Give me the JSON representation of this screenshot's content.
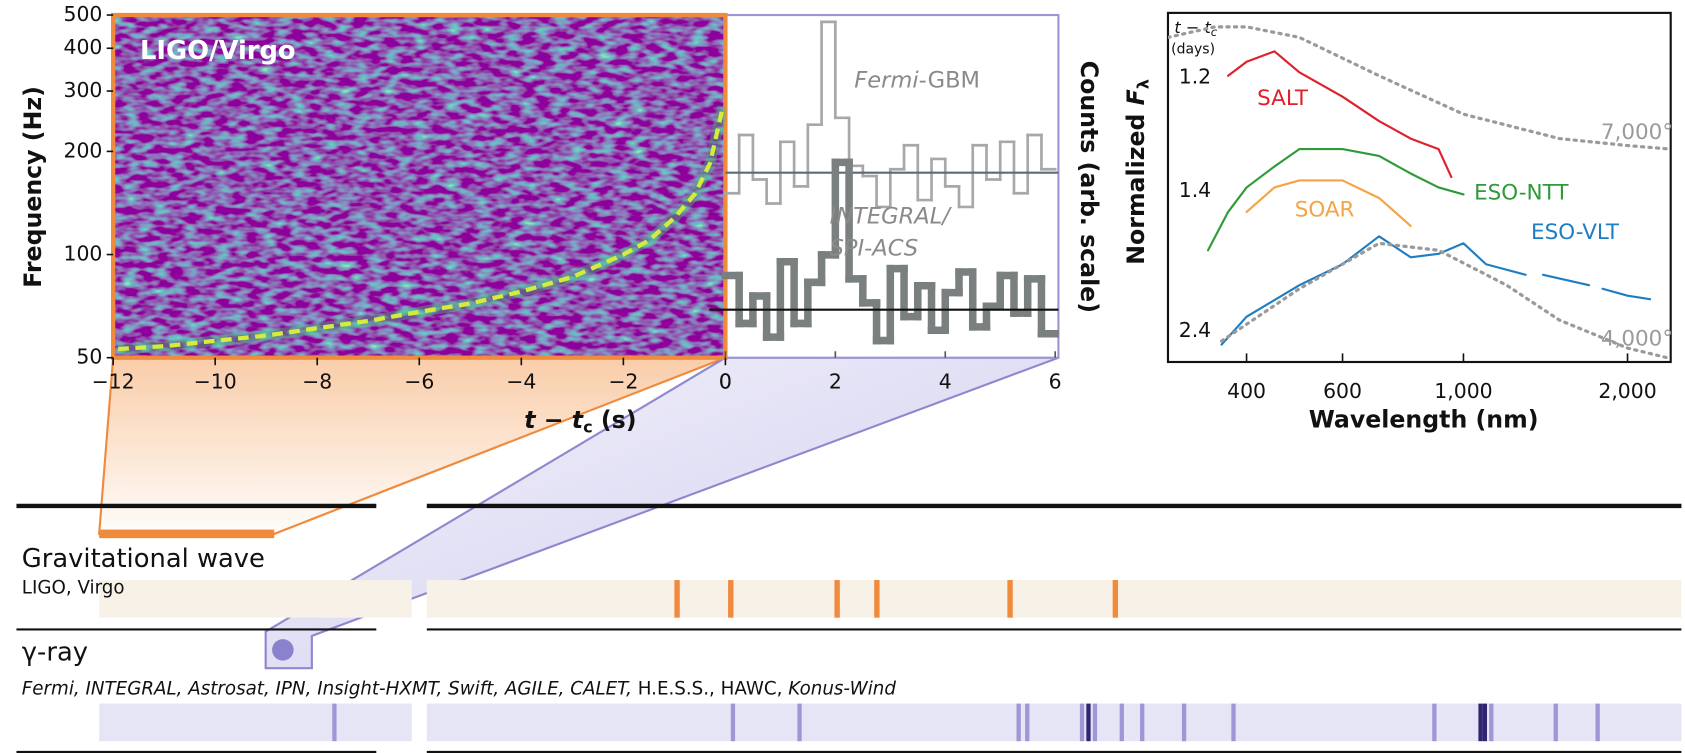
{
  "chart_data": [
    {
      "type": "spectrogram",
      "title": "LIGO/Virgo",
      "y_label": "Frequency (Hz)",
      "x_label": [
        "t",
        " − ",
        "t",
        "c",
        " (s)"
      ],
      "xlim": [
        -12,
        0
      ],
      "xticks": [
        {
          "value": -12,
          "label": "−12"
        },
        {
          "value": -10,
          "label": "−10"
        },
        {
          "value": -8,
          "label": "−8"
        },
        {
          "value": -6,
          "label": "−6"
        },
        {
          "value": -4,
          "label": "−4"
        },
        {
          "value": -2,
          "label": "−2"
        },
        0
      ],
      "ylim": [
        50,
        500
      ],
      "yticks": [
        50,
        100,
        200,
        300,
        400,
        500
      ],
      "log_y": true,
      "color": "#d4ec3c",
      "x": [
        -11.9,
        -11,
        -10,
        -9,
        -8,
        -7,
        -6,
        -5,
        -4,
        -3,
        -2,
        -1.5,
        -1,
        -0.6,
        -0.3,
        -0.05
      ],
      "values": [
        53,
        54,
        56,
        58,
        61,
        64,
        68,
        72,
        78,
        86,
        100,
        110,
        128,
        150,
        185,
        270
      ]
    },
    {
      "type": "histogram",
      "y_label": "Counts (arb. scale)",
      "xlim": [
        0,
        6
      ],
      "xticks": [
        0,
        2,
        4,
        6
      ],
      "ylim": [
        0,
        10
      ],
      "bins": [
        0,
        0.25,
        0.5,
        0.75,
        1,
        1.25,
        1.5,
        1.75,
        2,
        2.25,
        2.5,
        2.75,
        3,
        3.25,
        3.5,
        3.75,
        4,
        4.25,
        4.5,
        4.75,
        5,
        5.25,
        5.5,
        5.75,
        6
      ],
      "series": [
        {
          "label": [
            "Fermi",
            "-GBM"
          ],
          "color": "#a8a8a8",
          "baseline": 5.4,
          "baseline_color": "#5a6b7c",
          "values": [
            4.8,
            6.5,
            5.2,
            4.5,
            6.3,
            5.0,
            6.8,
            9.8,
            7.0,
            5.6,
            5.3,
            4.4,
            5.5,
            6.2,
            4.6,
            5.8,
            5.0,
            4.4,
            6.2,
            5.2,
            6.3,
            4.8,
            6.5,
            5.5
          ]
        },
        {
          "label": [
            "INTEGRAL/",
            "SPI-ACS"
          ],
          "color": "#7a7f7f",
          "baseline": 1.4,
          "baseline_color": "#111111",
          "values": [
            2.4,
            1.0,
            1.8,
            0.6,
            2.8,
            1.0,
            2.2,
            3.0,
            5.7,
            2.3,
            1.6,
            0.5,
            2.6,
            1.2,
            2.1,
            0.8,
            1.9,
            2.5,
            0.9,
            1.5,
            2.4,
            1.3,
            2.3,
            0.7
          ]
        }
      ]
    },
    {
      "type": "line",
      "y_label": [
        "Normalized ",
        "F",
        "λ"
      ],
      "x_label": "Wavelength (nm)",
      "epoch_header": [
        "t − t",
        "c",
        "(days)"
      ],
      "xlim": [
        287,
        2400
      ],
      "log_x": true,
      "xticks": [
        400,
        600,
        {
          "value": 1000,
          "label": "1,000"
        },
        {
          "value": 2000,
          "label": "2,000"
        }
      ],
      "ylim": [
        0,
        10
      ],
      "series": [
        {
          "name": "SALT",
          "color": "#e0202a",
          "epoch": 1.2,
          "x": [
            370,
            400,
            450,
            500,
            600,
            700,
            800,
            900,
            950
          ],
          "values": [
            8.2,
            8.6,
            8.9,
            8.3,
            7.6,
            6.9,
            6.4,
            6.1,
            5.3
          ]
        },
        {
          "name": "ESO-NTT",
          "color": "#2e9a3a",
          "epoch": 1.4,
          "x": [
            340,
            370,
            400,
            450,
            500,
            600,
            700,
            800,
            900,
            1000
          ],
          "values": [
            3.2,
            4.3,
            5.0,
            5.6,
            6.1,
            6.1,
            5.9,
            5.4,
            5.0,
            4.8
          ]
        },
        {
          "name": "SOAR",
          "color": "#f4a443",
          "x": [
            400,
            450,
            500,
            600,
            700,
            800
          ],
          "values": [
            4.3,
            5.0,
            5.2,
            5.2,
            4.7,
            3.9
          ]
        },
        {
          "name": "ESO-VLT",
          "color": "#1f7ec2",
          "epoch": 2.4,
          "x": [
            360,
            400,
            500,
            600,
            700,
            800,
            900,
            1000,
            1100,
            1300,
            1350,
            1400,
            1700,
            1750,
            1800,
            2000,
            2200
          ],
          "values": [
            0.5,
            1.3,
            2.2,
            2.8,
            3.6,
            3.0,
            3.1,
            3.4,
            2.8,
            2.5,
            null,
            2.5,
            2.2,
            null,
            2.1,
            1.9,
            1.8
          ]
        },
        {
          "name": "7,000°",
          "color": "#9a9a9a",
          "dashed": true,
          "x": [
            287,
            350,
            400,
            500,
            700,
            1000,
            1500,
            2000,
            2400
          ],
          "values": [
            9.3,
            9.6,
            9.6,
            9.3,
            8.2,
            7.1,
            6.4,
            6.2,
            6.1
          ]
        },
        {
          "name": "4,000°",
          "color": "#9a9a9a",
          "dashed": true,
          "x": [
            360,
            500,
            700,
            900,
            1200,
            1500,
            2000,
            2400
          ],
          "values": [
            0.6,
            2.1,
            3.4,
            3.2,
            2.2,
            1.2,
            0.4,
            0.1
          ]
        }
      ]
    }
  ],
  "timeline": {
    "rows": [
      {
        "title": "Gravitational wave",
        "instruments": [
          {
            "text": "LIGO, Virgo",
            "italic": false
          }
        ]
      },
      {
        "title": "γ-ray",
        "instruments": [
          {
            "text": "Fermi, INTEGRAL, Astrosat, IPN, Insight-HXMT, Swift, AGILE, CALET, ",
            "italic": true
          },
          {
            "text": "H.E.S.S., HAWC, ",
            "italic": false
          },
          {
            "text": "Konus-Wind",
            "italic": true
          }
        ]
      }
    ]
  }
}
